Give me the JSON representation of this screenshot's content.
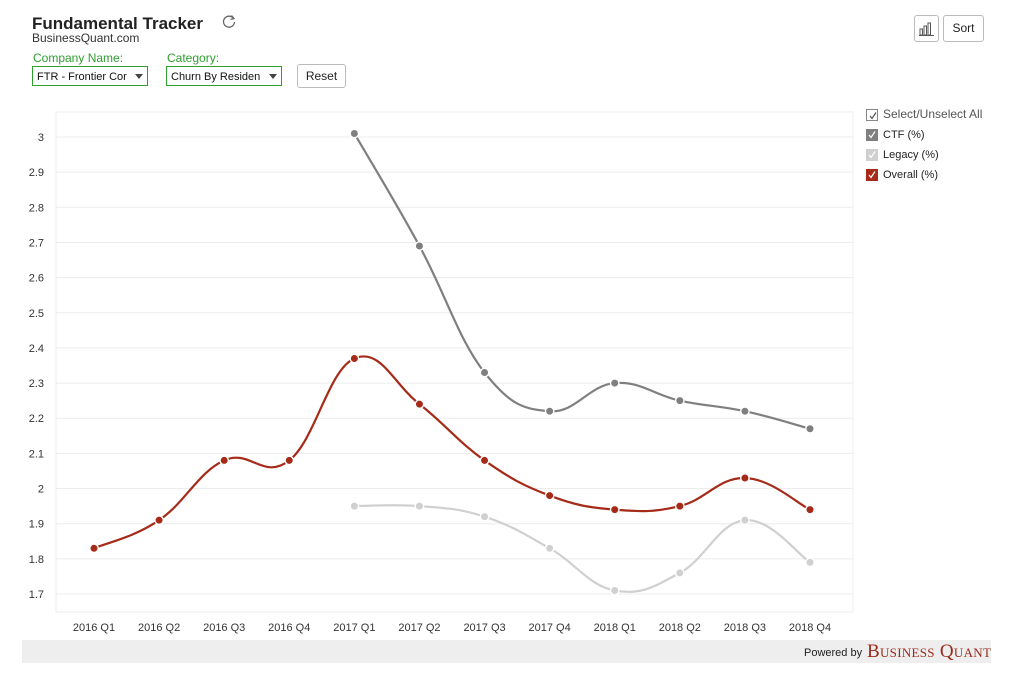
{
  "header": {
    "title": "Fundamental Tracker",
    "subtitle": "BusinessQuant.com"
  },
  "controls": {
    "company_label": "Company Name:",
    "company_value": "FTR - Frontier Cor",
    "category_label": "Category:",
    "category_value": "Churn By Residen",
    "reset_label": "Reset",
    "sort_label": "Sort"
  },
  "legend": {
    "select_all": "Select/Unselect All",
    "items": [
      {
        "label": "CTF (%)",
        "color": "#7f7f7f",
        "checked": true
      },
      {
        "label": "Legacy (%)",
        "color": "#d0d0d0",
        "checked": true
      },
      {
        "label": "Overall (%)",
        "color": "#a52a18",
        "checked": true
      }
    ]
  },
  "footer": {
    "powered_by": "Powered by",
    "brand": "Business Quant"
  },
  "chart_data": {
    "type": "line",
    "categories": [
      "2016 Q1",
      "2016 Q2",
      "2016 Q3",
      "2016 Q4",
      "2017 Q1",
      "2017 Q2",
      "2017 Q3",
      "2017 Q4",
      "2018 Q1",
      "2018 Q2",
      "2018 Q3",
      "2018 Q4"
    ],
    "series": [
      {
        "name": "CTF (%)",
        "color": "#7f7f7f",
        "values": [
          null,
          null,
          null,
          null,
          3.01,
          2.69,
          2.33,
          2.22,
          2.3,
          2.25,
          2.22,
          2.17
        ]
      },
      {
        "name": "Legacy (%)",
        "color": "#d0d0d0",
        "values": [
          null,
          null,
          null,
          null,
          1.95,
          1.95,
          1.92,
          1.83,
          1.71,
          1.76,
          1.91,
          1.79
        ]
      },
      {
        "name": "Overall (%)",
        "color": "#a52a18",
        "values": [
          1.83,
          1.91,
          2.08,
          2.08,
          2.37,
          2.24,
          2.08,
          1.98,
          1.94,
          1.95,
          2.03,
          1.94
        ]
      }
    ],
    "yticks": [
      "1.7",
      "1.8",
      "1.9",
      "2",
      "2.1",
      "2.2",
      "2.3",
      "2.4",
      "2.5",
      "2.6",
      "2.7",
      "2.8",
      "2.9",
      "3"
    ],
    "ylim": [
      1.65,
      3.05
    ],
    "grid": true,
    "legend_position": "right",
    "title": "",
    "xlabel": "",
    "ylabel": ""
  }
}
